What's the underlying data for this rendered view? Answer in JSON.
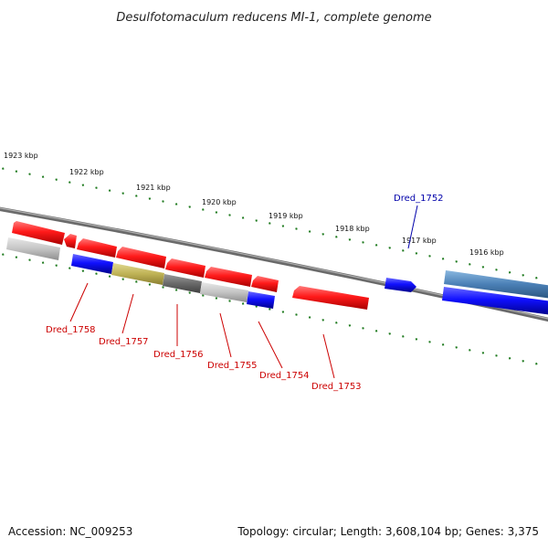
{
  "title": "Desulfotomaculum reducens MI-1, complete genome",
  "footer": {
    "accession": "Accession: NC_009253",
    "topology": "Topology: circular; Length: 3,608,104 bp; Genes: 3,375"
  },
  "colors": {
    "background": "#ffffff",
    "backbone": "#7a7a7a",
    "ticks": "#1e7a1e",
    "gene_label_red": "#cc0000",
    "gene_label_blue": "#0000aa"
  },
  "scale_labels": [
    "1923 kbp",
    "1922 kbp",
    "1921 kbp",
    "1920 kbp",
    "1919 kbp",
    "1918 kbp",
    "1917 kbp",
    "1916 kbp"
  ],
  "gene_labels": [
    {
      "text": "Dred_1758",
      "color": "red"
    },
    {
      "text": "Dred_1757",
      "color": "red"
    },
    {
      "text": "Dred_1756",
      "color": "red"
    },
    {
      "text": "Dred_1755",
      "color": "red"
    },
    {
      "text": "Dred_1754",
      "color": "red"
    },
    {
      "text": "Dred_1753",
      "color": "red"
    },
    {
      "text": "Dred_1752",
      "color": "blue"
    }
  ]
}
